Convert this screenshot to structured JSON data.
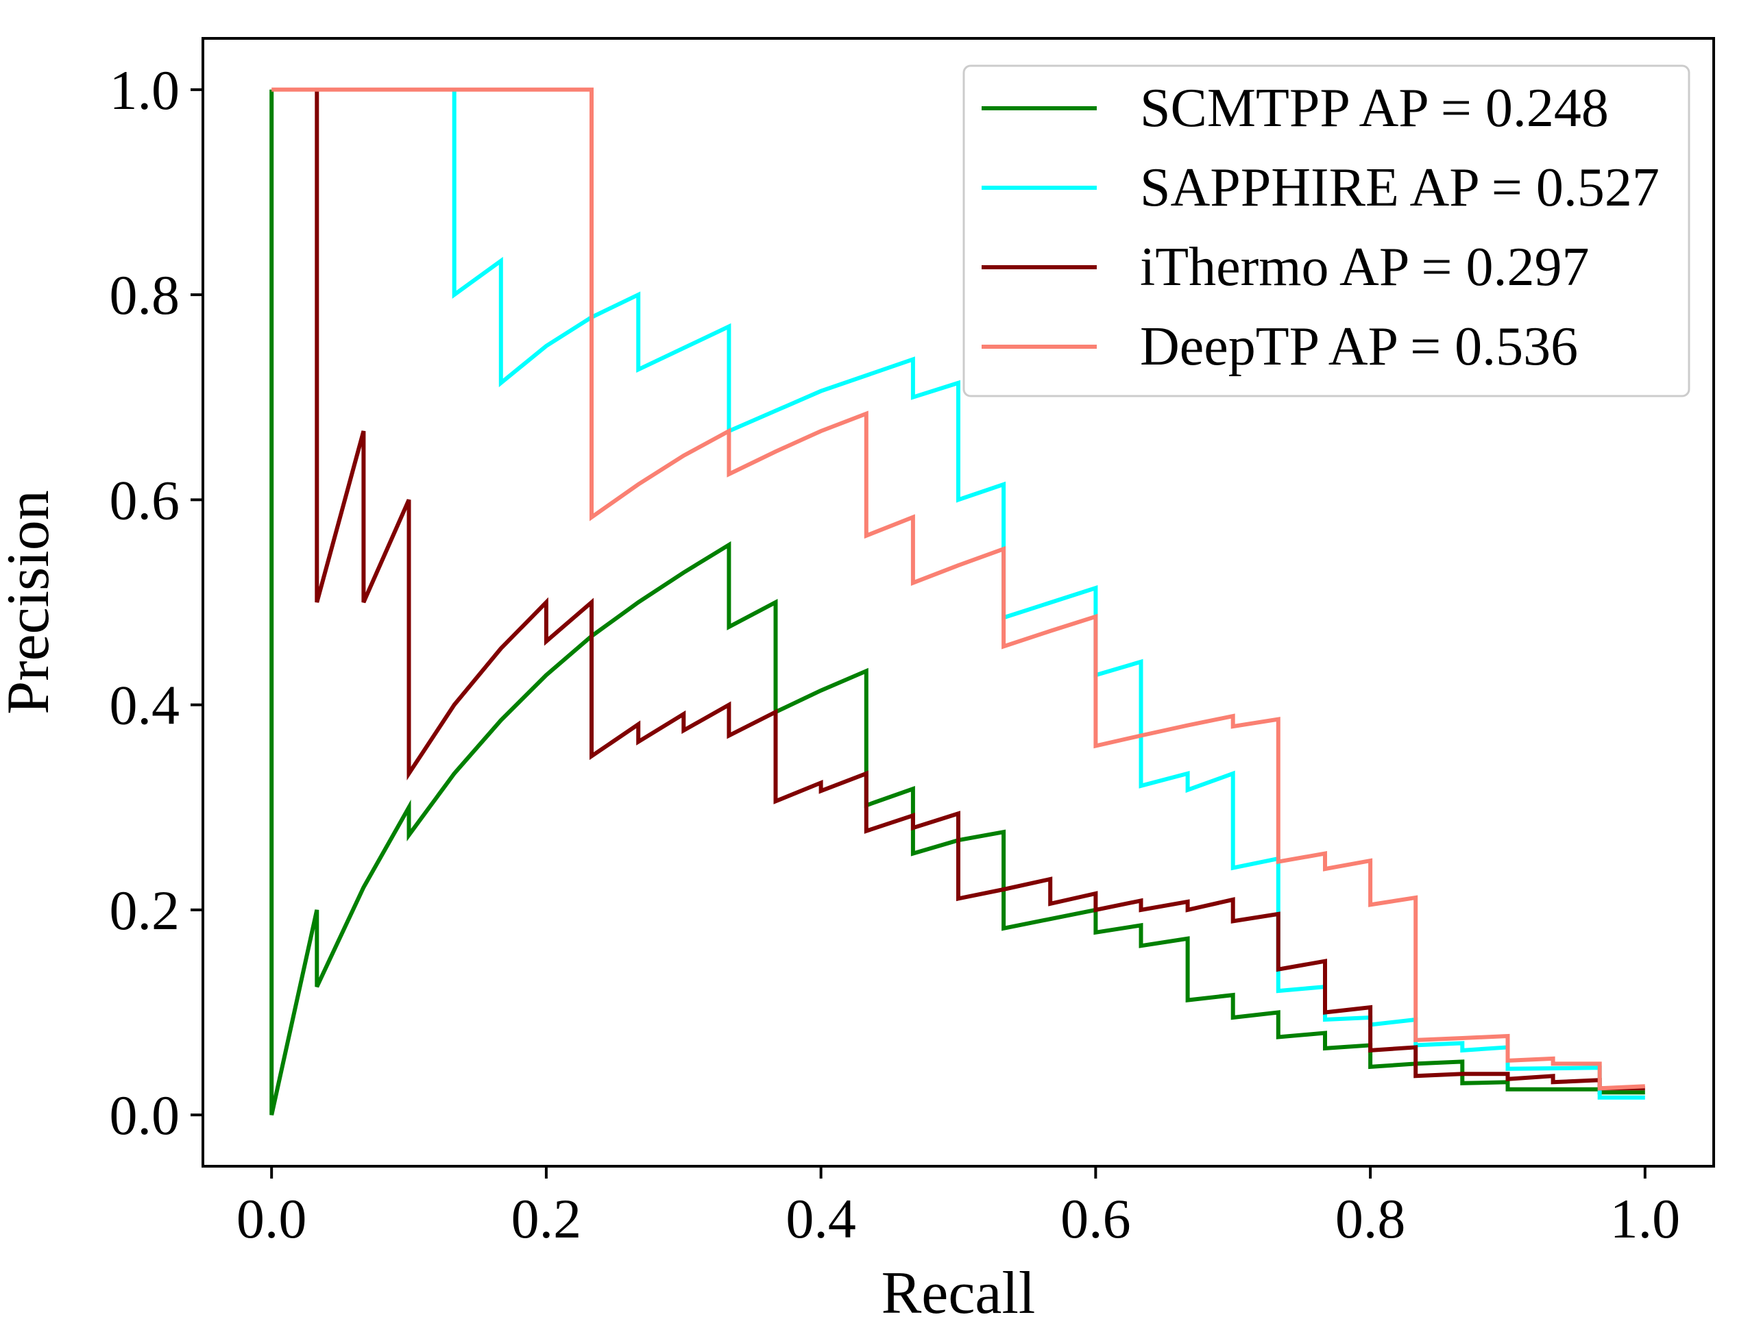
{
  "chart_data": {
    "type": "line",
    "title": "",
    "xlabel": "Recall",
    "ylabel": "Precision",
    "xlim": [
      -0.05,
      1.05
    ],
    "ylim": [
      -0.05,
      1.05
    ],
    "xticks": [
      0.0,
      0.2,
      0.4,
      0.6,
      0.8,
      1.0
    ],
    "xtick_labels": [
      "0.0",
      "0.2",
      "0.4",
      "0.6",
      "0.8",
      "1.0"
    ],
    "yticks": [
      0.0,
      0.2,
      0.4,
      0.6,
      0.8,
      1.0
    ],
    "ytick_labels": [
      "0.0",
      "0.2",
      "0.4",
      "0.6",
      "0.8",
      "1.0"
    ],
    "grid": false,
    "legend_position": "top-right",
    "series": [
      {
        "name": "SCMTPP AP = 0.248",
        "color": "#008000",
        "points": [
          [
            0.0,
            1.0
          ],
          [
            0.0,
            0.0
          ],
          [
            0.033,
            0.2
          ],
          [
            0.033,
            0.125
          ],
          [
            0.067,
            0.222
          ],
          [
            0.1,
            0.3
          ],
          [
            0.1,
            0.273
          ],
          [
            0.133,
            0.333
          ],
          [
            0.167,
            0.385
          ],
          [
            0.2,
            0.429
          ],
          [
            0.233,
            0.467
          ],
          [
            0.267,
            0.5
          ],
          [
            0.3,
            0.529
          ],
          [
            0.333,
            0.556
          ],
          [
            0.333,
            0.476
          ],
          [
            0.367,
            0.5
          ],
          [
            0.367,
            0.393
          ],
          [
            0.4,
            0.414
          ],
          [
            0.433,
            0.433
          ],
          [
            0.433,
            0.302
          ],
          [
            0.467,
            0.318
          ],
          [
            0.467,
            0.255
          ],
          [
            0.5,
            0.268
          ],
          [
            0.533,
            0.276
          ],
          [
            0.533,
            0.182
          ],
          [
            0.6,
            0.2
          ],
          [
            0.6,
            0.178
          ],
          [
            0.633,
            0.185
          ],
          [
            0.633,
            0.165
          ],
          [
            0.667,
            0.172
          ],
          [
            0.667,
            0.112
          ],
          [
            0.7,
            0.117
          ],
          [
            0.7,
            0.095
          ],
          [
            0.733,
            0.1
          ],
          [
            0.733,
            0.076
          ],
          [
            0.767,
            0.08
          ],
          [
            0.767,
            0.065
          ],
          [
            0.8,
            0.068
          ],
          [
            0.8,
            0.047
          ],
          [
            0.833,
            0.05
          ],
          [
            0.867,
            0.052
          ],
          [
            0.867,
            0.031
          ],
          [
            0.9,
            0.032
          ],
          [
            0.9,
            0.025
          ],
          [
            0.967,
            0.025
          ],
          [
            0.967,
            0.022
          ],
          [
            1.0,
            0.022
          ]
        ]
      },
      {
        "name": "SAPPHIRE AP = 0.527",
        "color": "#00FFFF",
        "points": [
          [
            0.133,
            1.0
          ],
          [
            0.133,
            0.8
          ],
          [
            0.167,
            0.833
          ],
          [
            0.167,
            0.714
          ],
          [
            0.2,
            0.75
          ],
          [
            0.233,
            0.778
          ],
          [
            0.267,
            0.8
          ],
          [
            0.267,
            0.727
          ],
          [
            0.333,
            0.769
          ],
          [
            0.333,
            0.667
          ],
          [
            0.4,
            0.706
          ],
          [
            0.467,
            0.737
          ],
          [
            0.467,
            0.7
          ],
          [
            0.5,
            0.714
          ],
          [
            0.5,
            0.6
          ],
          [
            0.533,
            0.615
          ],
          [
            0.533,
            0.485
          ],
          [
            0.6,
            0.514
          ],
          [
            0.6,
            0.429
          ],
          [
            0.633,
            0.442
          ],
          [
            0.633,
            0.321
          ],
          [
            0.667,
            0.333
          ],
          [
            0.667,
            0.317
          ],
          [
            0.7,
            0.333
          ],
          [
            0.7,
            0.241
          ],
          [
            0.733,
            0.25
          ],
          [
            0.733,
            0.121
          ],
          [
            0.767,
            0.125
          ],
          [
            0.767,
            0.093
          ],
          [
            0.8,
            0.095
          ],
          [
            0.8,
            0.088
          ],
          [
            0.833,
            0.093
          ],
          [
            0.833,
            0.068
          ],
          [
            0.867,
            0.07
          ],
          [
            0.867,
            0.063
          ],
          [
            0.9,
            0.066
          ],
          [
            0.9,
            0.045
          ],
          [
            0.967,
            0.046
          ],
          [
            0.967,
            0.017
          ],
          [
            1.0,
            0.017
          ]
        ]
      },
      {
        "name": "iThermo AP = 0.297",
        "color": "#800000",
        "points": [
          [
            0.033,
            1.0
          ],
          [
            0.033,
            0.5
          ],
          [
            0.067,
            0.667
          ],
          [
            0.067,
            0.5
          ],
          [
            0.1,
            0.6
          ],
          [
            0.1,
            0.333
          ],
          [
            0.133,
            0.4
          ],
          [
            0.167,
            0.455
          ],
          [
            0.2,
            0.5
          ],
          [
            0.2,
            0.462
          ],
          [
            0.233,
            0.5
          ],
          [
            0.233,
            0.35
          ],
          [
            0.267,
            0.381
          ],
          [
            0.267,
            0.364
          ],
          [
            0.3,
            0.391
          ],
          [
            0.3,
            0.375
          ],
          [
            0.333,
            0.4
          ],
          [
            0.333,
            0.37
          ],
          [
            0.367,
            0.393
          ],
          [
            0.367,
            0.306
          ],
          [
            0.4,
            0.324
          ],
          [
            0.4,
            0.316
          ],
          [
            0.433,
            0.333
          ],
          [
            0.433,
            0.277
          ],
          [
            0.467,
            0.292
          ],
          [
            0.467,
            0.28
          ],
          [
            0.5,
            0.294
          ],
          [
            0.5,
            0.211
          ],
          [
            0.533,
            0.22
          ],
          [
            0.567,
            0.23
          ],
          [
            0.567,
            0.206
          ],
          [
            0.6,
            0.216
          ],
          [
            0.6,
            0.2
          ],
          [
            0.633,
            0.209
          ],
          [
            0.633,
            0.2
          ],
          [
            0.667,
            0.208
          ],
          [
            0.667,
            0.2
          ],
          [
            0.7,
            0.21
          ],
          [
            0.7,
            0.189
          ],
          [
            0.733,
            0.196
          ],
          [
            0.733,
            0.142
          ],
          [
            0.767,
            0.15
          ],
          [
            0.767,
            0.1
          ],
          [
            0.8,
            0.105
          ],
          [
            0.8,
            0.063
          ],
          [
            0.833,
            0.066
          ],
          [
            0.833,
            0.038
          ],
          [
            0.867,
            0.04
          ],
          [
            0.9,
            0.04
          ],
          [
            0.9,
            0.035
          ],
          [
            0.933,
            0.038
          ],
          [
            0.933,
            0.032
          ],
          [
            0.967,
            0.034
          ],
          [
            0.967,
            0.026
          ],
          [
            1.0,
            0.026
          ]
        ]
      },
      {
        "name": "DeepTP AP = 0.536",
        "color": "#FA8072",
        "points": [
          [
            0.0,
            1.0
          ],
          [
            0.233,
            1.0
          ],
          [
            0.233,
            0.583
          ],
          [
            0.267,
            0.615
          ],
          [
            0.3,
            0.643
          ],
          [
            0.333,
            0.667
          ],
          [
            0.333,
            0.625
          ],
          [
            0.367,
            0.647
          ],
          [
            0.4,
            0.667
          ],
          [
            0.433,
            0.684
          ],
          [
            0.433,
            0.565
          ],
          [
            0.467,
            0.583
          ],
          [
            0.467,
            0.519
          ],
          [
            0.5,
            0.536
          ],
          [
            0.533,
            0.552
          ],
          [
            0.533,
            0.457
          ],
          [
            0.567,
            0.472
          ],
          [
            0.6,
            0.486
          ],
          [
            0.6,
            0.36
          ],
          [
            0.633,
            0.37
          ],
          [
            0.667,
            0.38
          ],
          [
            0.7,
            0.389
          ],
          [
            0.7,
            0.379
          ],
          [
            0.733,
            0.386
          ],
          [
            0.733,
            0.247
          ],
          [
            0.767,
            0.255
          ],
          [
            0.767,
            0.24
          ],
          [
            0.8,
            0.248
          ],
          [
            0.8,
            0.205
          ],
          [
            0.833,
            0.212
          ],
          [
            0.833,
            0.073
          ],
          [
            0.867,
            0.075
          ],
          [
            0.9,
            0.077
          ],
          [
            0.9,
            0.053
          ],
          [
            0.933,
            0.055
          ],
          [
            0.933,
            0.05
          ],
          [
            0.967,
            0.05
          ],
          [
            0.967,
            0.026
          ],
          [
            1.0,
            0.028
          ]
        ]
      }
    ]
  }
}
